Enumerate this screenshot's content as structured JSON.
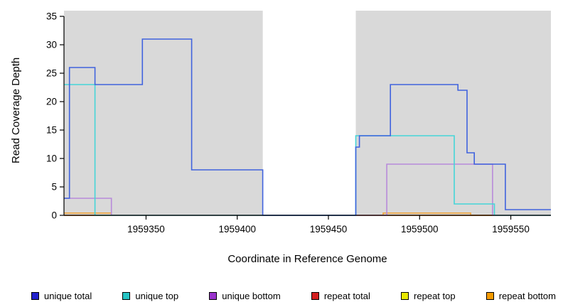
{
  "chart_data": {
    "type": "line",
    "step": true,
    "title": "",
    "xlabel": "Coordinate in Reference Genome",
    "ylabel": "Read Coverage Depth",
    "xlim": [
      1959305,
      1959572
    ],
    "ylim": [
      0,
      36
    ],
    "x_ticks": [
      1959350,
      1959400,
      1959450,
      1959500,
      1959550
    ],
    "y_ticks": [
      0,
      5,
      10,
      15,
      20,
      25,
      30,
      35
    ],
    "grid": false,
    "legend_position": "bottom",
    "background_color": "#D9D9D9",
    "axis_color": "#000000",
    "shaded_regions": [
      {
        "from": 1959305,
        "to": 1959414
      },
      {
        "from": 1959465,
        "to": 1959572
      }
    ],
    "series": [
      {
        "name": "unique total",
        "color": "#4063DE",
        "legend_color": "#2121CC",
        "points": [
          [
            1959305,
            3
          ],
          [
            1959308,
            26
          ],
          [
            1959322,
            23
          ],
          [
            1959348,
            31
          ],
          [
            1959375,
            8
          ],
          [
            1959414,
            0
          ],
          [
            1959465,
            12
          ],
          [
            1959467,
            14
          ],
          [
            1959484,
            23
          ],
          [
            1959521,
            22
          ],
          [
            1959526,
            11
          ],
          [
            1959530,
            9
          ],
          [
            1959547,
            1
          ]
        ]
      },
      {
        "name": "unique top",
        "color": "#45D5D8",
        "legend_color": "#26C4C4",
        "points": [
          [
            1959305,
            23
          ],
          [
            1959322,
            0
          ],
          [
            1959465,
            14
          ],
          [
            1959519,
            2
          ],
          [
            1959541,
            0
          ]
        ]
      },
      {
        "name": "unique bottom",
        "color": "#B88ADA",
        "legend_color": "#9933CC",
        "points": [
          [
            1959305,
            3
          ],
          [
            1959331,
            0
          ],
          [
            1959482,
            9
          ],
          [
            1959540,
            0
          ]
        ]
      },
      {
        "name": "repeat total",
        "color": "#C04040",
        "legend_color": "#D42020",
        "points": [
          [
            1959305,
            0
          ]
        ]
      },
      {
        "name": "repeat top",
        "color": "#E8E800",
        "legend_color": "#E8E800",
        "points": [
          [
            1959305,
            0
          ]
        ]
      },
      {
        "name": "repeat bottom",
        "color": "#F0A43C",
        "legend_color": "#F59B00",
        "points": [
          [
            1959305,
            0.4
          ],
          [
            1959331,
            0
          ],
          [
            1959480,
            0.4
          ],
          [
            1959528,
            0
          ]
        ]
      }
    ]
  }
}
